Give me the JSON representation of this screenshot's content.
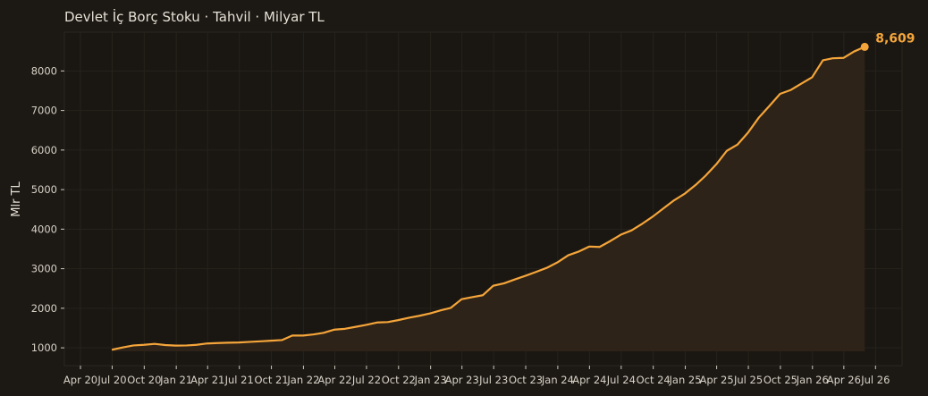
{
  "chart_data": {
    "type": "area",
    "title": "Devlet İç Borç Stoku · Tahvil · Milyar TL",
    "xlabel": "",
    "ylabel": "Mlr TL",
    "ylim": [
      550,
      8980
    ],
    "xlim": [
      "2020-04-01",
      "2026-07-31"
    ],
    "yticks": [
      1000,
      2000,
      3000,
      4000,
      5000,
      6000,
      7000,
      8000
    ],
    "xticks": [
      {
        "date": "2020-04-01",
        "label": "Apr 20"
      },
      {
        "date": "2020-07-01",
        "label": "Jul 20"
      },
      {
        "date": "2020-10-01",
        "label": "Oct 20"
      },
      {
        "date": "2021-01-01",
        "label": "Jan 21"
      },
      {
        "date": "2021-04-01",
        "label": "Apr 21"
      },
      {
        "date": "2021-07-01",
        "label": "Jul 21"
      },
      {
        "date": "2021-10-01",
        "label": "Oct 21"
      },
      {
        "date": "2022-01-01",
        "label": "Jan 22"
      },
      {
        "date": "2022-04-01",
        "label": "Apr 22"
      },
      {
        "date": "2022-07-01",
        "label": "Jul 22"
      },
      {
        "date": "2022-10-01",
        "label": "Oct 22"
      },
      {
        "date": "2023-01-01",
        "label": "Jan 23"
      },
      {
        "date": "2023-04-01",
        "label": "Apr 23"
      },
      {
        "date": "2023-07-01",
        "label": "Jul 23"
      },
      {
        "date": "2023-10-01",
        "label": "Oct 23"
      },
      {
        "date": "2024-01-01",
        "label": "Jan 24"
      },
      {
        "date": "2024-04-01",
        "label": "Apr 24"
      },
      {
        "date": "2024-07-01",
        "label": "Jul 24"
      },
      {
        "date": "2024-10-01",
        "label": "Oct 24"
      },
      {
        "date": "2025-01-01",
        "label": "Jan 25"
      },
      {
        "date": "2025-04-01",
        "label": "Apr 25"
      },
      {
        "date": "2025-07-01",
        "label": "Jul 25"
      },
      {
        "date": "2025-10-01",
        "label": "Oct 25"
      },
      {
        "date": "2026-01-01",
        "label": "Jan 26"
      },
      {
        "date": "2026-04-01",
        "label": "Apr 26"
      },
      {
        "date": "2026-07-01",
        "label": "Jul 26"
      }
    ],
    "grid": true,
    "series": [
      {
        "color": "#f5a53a",
        "fill": "#2e2318",
        "x": [
          "2020-06-30",
          "2020-07-31",
          "2020-08-31",
          "2020-09-30",
          "2020-10-31",
          "2020-11-30",
          "2020-12-31",
          "2021-01-31",
          "2021-02-28",
          "2021-03-31",
          "2021-04-30",
          "2021-05-31",
          "2021-06-30",
          "2021-07-31",
          "2021-08-31",
          "2021-09-30",
          "2021-10-31",
          "2021-11-30",
          "2021-12-31",
          "2022-01-31",
          "2022-02-28",
          "2022-03-31",
          "2022-04-30",
          "2022-05-31",
          "2022-06-30",
          "2022-07-31",
          "2022-08-31",
          "2022-09-30",
          "2022-10-31",
          "2022-11-30",
          "2022-12-31",
          "2023-01-31",
          "2023-02-28",
          "2023-03-31",
          "2023-04-30",
          "2023-05-31",
          "2023-06-30",
          "2023-07-31",
          "2023-08-31",
          "2023-09-30",
          "2023-10-31",
          "2023-11-30",
          "2023-12-31",
          "2024-01-31",
          "2024-02-29",
          "2024-03-31",
          "2024-04-30",
          "2024-05-31",
          "2024-06-30",
          "2024-07-31",
          "2024-08-31",
          "2024-09-30",
          "2024-10-31",
          "2024-11-30",
          "2024-12-31",
          "2025-01-31",
          "2025-02-28",
          "2025-03-31",
          "2025-04-30",
          "2025-05-31",
          "2025-06-30",
          "2025-07-31",
          "2025-08-31",
          "2025-09-30",
          "2025-10-31",
          "2025-11-30",
          "2025-12-31",
          "2026-01-31",
          "2026-02-28",
          "2026-03-31",
          "2026-04-30",
          "2026-05-31"
        ],
        "values": [
          950,
          1010,
          1060,
          1075,
          1100,
          1070,
          1055,
          1060,
          1075,
          1110,
          1120,
          1130,
          1135,
          1150,
          1165,
          1180,
          1195,
          1310,
          1310,
          1340,
          1380,
          1460,
          1480,
          1530,
          1580,
          1640,
          1650,
          1700,
          1760,
          1810,
          1870,
          1950,
          2010,
          2230,
          2280,
          2330,
          2570,
          2630,
          2730,
          2820,
          2920,
          3020,
          3160,
          3340,
          3430,
          3560,
          3550,
          3700,
          3860,
          3970,
          4140,
          4320,
          4530,
          4730,
          4900,
          5120,
          5350,
          5640,
          5980,
          6140,
          6440,
          6820,
          7120,
          7420,
          7520,
          7680,
          7840,
          8270,
          8320,
          8330,
          8490,
          8609
        ]
      }
    ],
    "last_value_label": "8,609"
  }
}
